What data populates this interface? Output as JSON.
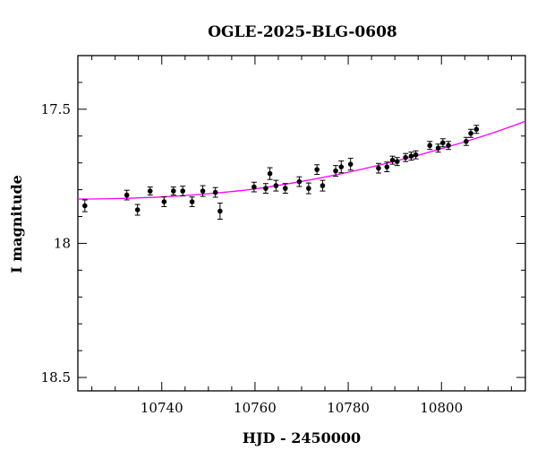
{
  "chart_data": {
    "type": "scatter",
    "title": "OGLE-2025-BLG-0608",
    "xlabel": "HJD - 2450000",
    "ylabel": "I magnitude",
    "xlim": [
      10722,
      10818
    ],
    "ylim": [
      18.55,
      17.3
    ],
    "y_inverted": true,
    "x_ticks": [
      10740,
      10760,
      10780,
      10800
    ],
    "x_tick_labels": [
      "10740",
      "10760",
      "10780",
      "10800"
    ],
    "y_ticks": [
      17.5,
      18,
      18.5
    ],
    "y_tick_labels": [
      "17.5",
      "18",
      "18.5"
    ],
    "grid": false,
    "colors": {
      "points": "#000000",
      "model": "#ff00ff"
    },
    "series": [
      {
        "points": [
          {
            "x": 10723.5,
            "y": 17.86,
            "err": 0.022
          },
          {
            "x": 10732.5,
            "y": 17.82,
            "err": 0.018
          },
          {
            "x": 10734.8,
            "y": 17.875,
            "err": 0.02
          },
          {
            "x": 10737.5,
            "y": 17.805,
            "err": 0.015
          },
          {
            "x": 10740.5,
            "y": 17.845,
            "err": 0.018
          },
          {
            "x": 10742.5,
            "y": 17.805,
            "err": 0.015
          },
          {
            "x": 10744.5,
            "y": 17.805,
            "err": 0.018
          },
          {
            "x": 10746.5,
            "y": 17.845,
            "err": 0.018
          },
          {
            "x": 10748.8,
            "y": 17.805,
            "err": 0.02
          },
          {
            "x": 10751.5,
            "y": 17.81,
            "err": 0.018
          },
          {
            "x": 10752.5,
            "y": 17.88,
            "err": 0.03
          },
          {
            "x": 10759.8,
            "y": 17.79,
            "err": 0.018
          },
          {
            "x": 10762.3,
            "y": 17.795,
            "err": 0.018
          },
          {
            "x": 10763.2,
            "y": 17.74,
            "err": 0.022
          },
          {
            "x": 10764.5,
            "y": 17.785,
            "err": 0.02
          },
          {
            "x": 10766.5,
            "y": 17.795,
            "err": 0.018
          },
          {
            "x": 10769.5,
            "y": 17.77,
            "err": 0.018
          },
          {
            "x": 10771.5,
            "y": 17.795,
            "err": 0.02
          },
          {
            "x": 10773.3,
            "y": 17.725,
            "err": 0.018
          },
          {
            "x": 10774.5,
            "y": 17.785,
            "err": 0.02
          },
          {
            "x": 10777.3,
            "y": 17.73,
            "err": 0.02
          },
          {
            "x": 10778.5,
            "y": 17.715,
            "err": 0.022
          },
          {
            "x": 10780.5,
            "y": 17.705,
            "err": 0.022
          },
          {
            "x": 10786.5,
            "y": 17.72,
            "err": 0.018
          },
          {
            "x": 10788.3,
            "y": 17.715,
            "err": 0.018
          },
          {
            "x": 10789.5,
            "y": 17.69,
            "err": 0.015
          },
          {
            "x": 10790.5,
            "y": 17.695,
            "err": 0.015
          },
          {
            "x": 10792.3,
            "y": 17.68,
            "err": 0.015
          },
          {
            "x": 10793.5,
            "y": 17.675,
            "err": 0.015
          },
          {
            "x": 10794.5,
            "y": 17.67,
            "err": 0.015
          },
          {
            "x": 10797.5,
            "y": 17.635,
            "err": 0.015
          },
          {
            "x": 10799.3,
            "y": 17.645,
            "err": 0.015
          },
          {
            "x": 10800.3,
            "y": 17.625,
            "err": 0.015
          },
          {
            "x": 10801.5,
            "y": 17.635,
            "err": 0.015
          },
          {
            "x": 10805.3,
            "y": 17.62,
            "err": 0.015
          },
          {
            "x": 10806.3,
            "y": 17.59,
            "err": 0.015
          },
          {
            "x": 10807.5,
            "y": 17.575,
            "err": 0.015
          }
        ]
      }
    ],
    "model_curve": {
      "x": [
        10722,
        10730,
        10740,
        10750,
        10760,
        10770,
        10780,
        10790,
        10800,
        10810,
        10818
      ],
      "y": [
        17.835,
        17.833,
        17.827,
        17.815,
        17.797,
        17.769,
        17.735,
        17.694,
        17.647,
        17.594,
        17.545
      ]
    }
  }
}
